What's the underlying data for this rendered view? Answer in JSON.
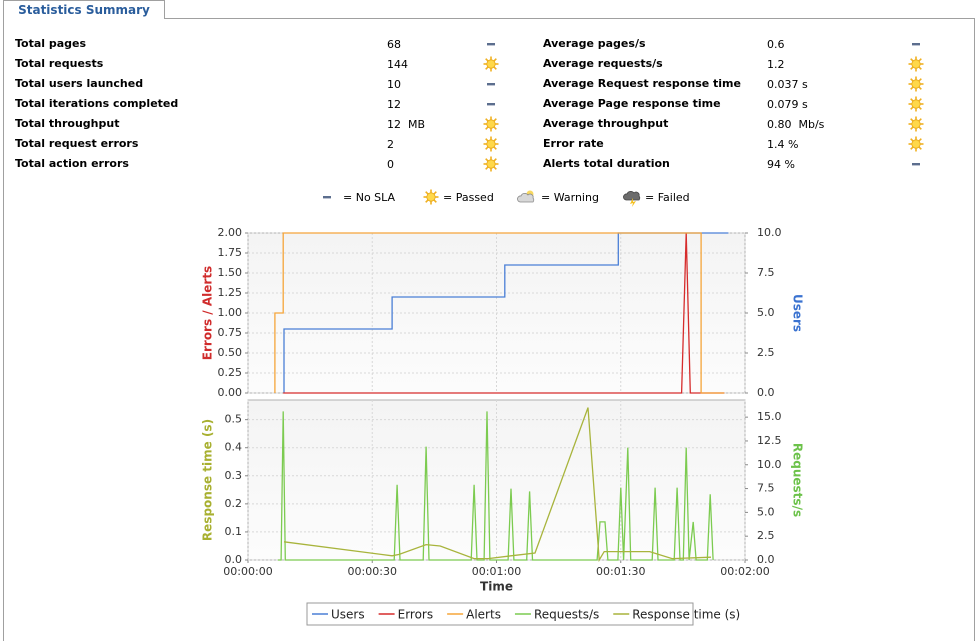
{
  "tab": "Statistics Summary",
  "stats": {
    "left": [
      {
        "label": "Total pages",
        "value": "68",
        "sla": "none"
      },
      {
        "label": "Total requests",
        "value": "144",
        "sla": "passed"
      },
      {
        "label": "Total users launched",
        "value": "10",
        "sla": "none"
      },
      {
        "label": "Total iterations completed",
        "value": "12",
        "sla": "none"
      },
      {
        "label": "Total throughput",
        "value": "12  MB",
        "sla": "passed"
      },
      {
        "label": "Total request errors",
        "value": "2",
        "sla": "passed"
      },
      {
        "label": "Total action errors",
        "value": "0",
        "sla": "passed"
      }
    ],
    "right": [
      {
        "label": "Average pages/s",
        "value": "0.6",
        "sla": "none"
      },
      {
        "label": "Average requests/s",
        "value": "1.2",
        "sla": "passed"
      },
      {
        "label": "Average Request response time",
        "value": "0.037 s",
        "sla": "passed"
      },
      {
        "label": "Average Page response time",
        "value": "0.079 s",
        "sla": "passed"
      },
      {
        "label": "Average throughput",
        "value": "0.80  Mb/s",
        "sla": "passed"
      },
      {
        "label": "Error rate",
        "value": "1.4 %",
        "sla": "passed"
      },
      {
        "label": "Alerts total duration",
        "value": "94 %",
        "sla": "none"
      }
    ]
  },
  "sla_legend": [
    {
      "icon": "none",
      "label": "= No SLA"
    },
    {
      "icon": "passed",
      "label": "= Passed"
    },
    {
      "icon": "warning",
      "label": "= Warning"
    },
    {
      "icon": "failed",
      "label": "= Failed"
    }
  ],
  "chart_data": [
    {
      "type": "line",
      "ylabel": "Errors / Alerts",
      "ylabel_color": "#d02c2c",
      "y2label": "Users",
      "y2label_color": "#3a72d0",
      "xlim": [
        0,
        120
      ],
      "ylim": [
        0,
        2
      ],
      "y2lim": [
        0,
        10
      ],
      "grid": true,
      "yticks": [
        {
          "value": 0,
          "label": "0.00"
        },
        0.25,
        {
          "value": 0.5,
          "label": "0.50"
        },
        0.75,
        {
          "value": 1,
          "label": "1.00"
        },
        1.25,
        {
          "value": 1.5,
          "label": "1.50"
        },
        1.75,
        {
          "value": 2,
          "label": "2.00"
        }
      ],
      "y2ticks": [
        {
          "value": 0,
          "label": "0.0"
        },
        2.5,
        {
          "value": 5,
          "label": "5.0"
        },
        7.5,
        {
          "value": 10,
          "label": "10.0"
        }
      ],
      "series": [
        {
          "name": "Users",
          "color": "#4a7fd6",
          "axis": "y2",
          "x": [
            8.7,
            8.7,
            34.8,
            34.8,
            62,
            62,
            89.4,
            89.4,
            116
          ],
          "values": [
            0,
            4,
            4,
            6,
            6,
            8,
            8,
            10,
            10
          ]
        },
        {
          "name": "Errors",
          "color": "#d62c2c",
          "x": [
            8.5,
            104.7,
            105.8,
            106.8,
            115
          ],
          "values": [
            0,
            0,
            2,
            0,
            0
          ]
        },
        {
          "name": "Alerts",
          "color": "#f5a53a",
          "x": [
            6.5,
            6.5,
            8.5,
            8.5,
            109.4,
            109.4,
            115
          ],
          "values": [
            0,
            1,
            1,
            2,
            2,
            0,
            0
          ]
        }
      ]
    },
    {
      "type": "line",
      "ylabel": "Response time (s)",
      "ylabel_color": "#a8b030",
      "y2label": "Requests/s",
      "y2label_color": "#6cc24a",
      "xlabel": "Time",
      "xlim": [
        0,
        120
      ],
      "ylim": [
        0,
        0.57
      ],
      "y2lim": [
        0,
        16.8
      ],
      "grid": true,
      "xticks": [
        {
          "value": 0,
          "label": "00:00:00"
        },
        {
          "value": 30,
          "label": "00:00:30"
        },
        {
          "value": 60,
          "label": "00:01:00"
        },
        {
          "value": 90,
          "label": "00:01:30"
        },
        {
          "value": 120,
          "label": "00:02:00"
        }
      ],
      "yticks": [
        {
          "value": 0,
          "label": "0.0"
        },
        0.1,
        0.2,
        0.3,
        0.4,
        0.5
      ],
      "y2ticks": [
        {
          "value": 0,
          "label": "0.0"
        },
        2.5,
        {
          "value": 5,
          "label": "5.0"
        },
        7.5,
        {
          "value": 10,
          "label": "10.0"
        },
        12.5,
        {
          "value": 15,
          "label": "15.0"
        }
      ],
      "series": [
        {
          "name": "Requests/s",
          "color": "#7ccb50",
          "axis": "y2",
          "x": [
            7.2,
            8.0,
            8.5,
            9.0,
            35.3,
            36,
            36.7,
            42.3,
            43,
            43.7,
            53.9,
            54.6,
            55.3,
            57,
            57.7,
            58.4,
            62.8,
            63.5,
            64.2,
            67.3,
            68,
            68.7,
            84.3,
            85,
            86.2,
            86.9,
            89.3,
            90,
            90.7,
            91.7,
            92.4,
            97.6,
            98.3,
            99,
            102.9,
            103.6,
            104.3,
            105.1,
            105.8,
            106.5,
            107.5,
            108.2,
            110.9,
            111.6,
            112.3
          ],
          "values": [
            0,
            0,
            15.6,
            0,
            0,
            7.9,
            0,
            0,
            11.9,
            0,
            0,
            7.9,
            0,
            0,
            15.6,
            0,
            0,
            7.5,
            0,
            0,
            7.2,
            0,
            0,
            4.0,
            4.0,
            0,
            0,
            7.6,
            0,
            11.8,
            0,
            0,
            7.6,
            0,
            0,
            7.6,
            0,
            0,
            11.8,
            0,
            4.0,
            0,
            0,
            6.9,
            0
          ]
        },
        {
          "name": "Response time (s)",
          "color": "#a8b43c",
          "x": [
            8.7,
            34.8,
            36.5,
            43,
            46.4,
            54.6,
            58,
            63.5,
            69.3,
            82.1,
            84.8,
            86,
            91.5,
            97,
            102.4,
            111.8
          ],
          "values": [
            0.065,
            0.015,
            0.02,
            0.055,
            0.05,
            0.005,
            0.005,
            0.015,
            0.025,
            0.543,
            0.0,
            0.03,
            0.03,
            0.03,
            0.005,
            0.01
          ]
        }
      ]
    }
  ]
}
